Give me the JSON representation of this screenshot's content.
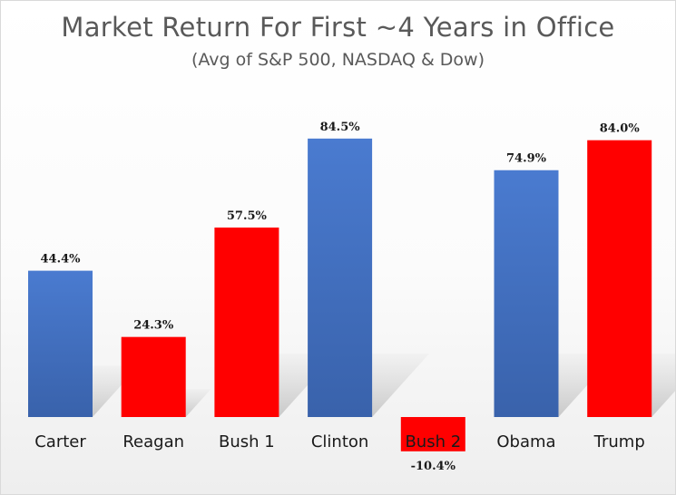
{
  "chart_data": {
    "type": "bar",
    "title": "Market Return For First ~4 Years in Office",
    "subtitle": "(Avg of S&P 500, NASDAQ & Dow)",
    "categories": [
      "Carter",
      "Reagan",
      "Bush 1",
      "Clinton",
      "Bush 2",
      "Obama",
      "Trump"
    ],
    "values": [
      44.4,
      24.3,
      57.5,
      84.5,
      -10.4,
      74.9,
      84.0
    ],
    "data_labels": [
      "44.4%",
      "24.3%",
      "57.5%",
      "84.5%",
      "-10.4%",
      "74.9%",
      "84.0%"
    ],
    "bar_colors": [
      "#4472c4",
      "#ff0000",
      "#ff0000",
      "#4472c4",
      "#ff0000",
      "#4472c4",
      "#ff0000"
    ],
    "value_unit": "%",
    "xlabel": "",
    "ylabel": "",
    "ylim": [
      -10.4,
      84.5
    ],
    "grid": false,
    "legend": "none"
  }
}
